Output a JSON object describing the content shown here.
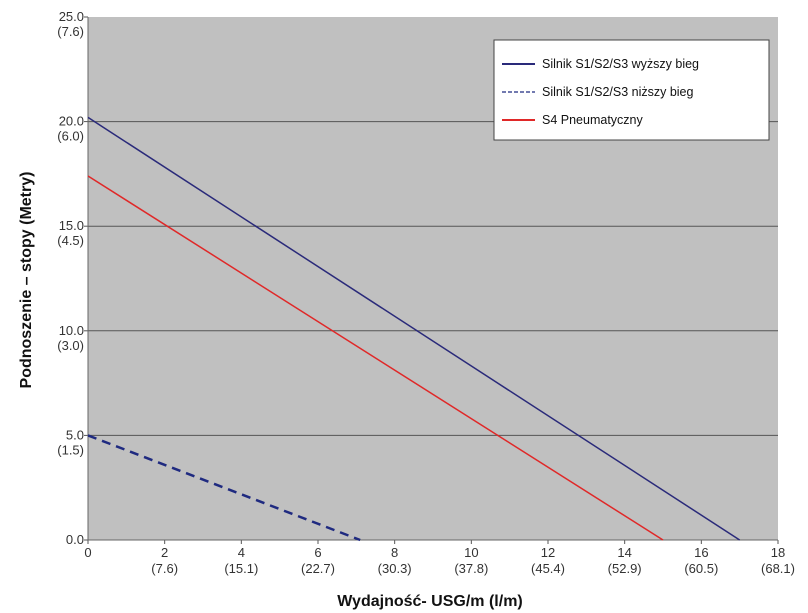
{
  "chart_data": {
    "type": "line",
    "title": "",
    "xlabel": "Wydajność- USG/m  (l/m)",
    "ylabel": "Podnoszenie – stopy (Metry)",
    "xlim": [
      0,
      18
    ],
    "ylim": [
      0,
      25
    ],
    "grid": "horizontal",
    "legend_placement": "top-right",
    "plot_background": "#c0c0c0",
    "x_ticks": [
      {
        "v": 0,
        "l": "0",
        "s": ""
      },
      {
        "v": 2,
        "l": "2",
        "s": "(7.6)"
      },
      {
        "v": 4,
        "l": "4",
        "s": "(15.1)"
      },
      {
        "v": 6,
        "l": "6",
        "s": "(22.7)"
      },
      {
        "v": 8,
        "l": "8",
        "s": "(30.3)"
      },
      {
        "v": 10,
        "l": "10",
        "s": "(37.8)"
      },
      {
        "v": 12,
        "l": "12",
        "s": "(45.4)"
      },
      {
        "v": 14,
        "l": "14",
        "s": "(52.9)"
      },
      {
        "v": 16,
        "l": "16",
        "s": "(60.5)"
      },
      {
        "v": 18,
        "l": "18",
        "s": "(68.1)"
      }
    ],
    "y_ticks": [
      {
        "v": 0,
        "l": "0.0",
        "s": ""
      },
      {
        "v": 5,
        "l": "5.0",
        "s": "(1.5)"
      },
      {
        "v": 10,
        "l": "10.0",
        "s": "(3.0)"
      },
      {
        "v": 15,
        "l": "15.0",
        "s": "(4.5)"
      },
      {
        "v": 20,
        "l": "20.0",
        "s": "(6.0)"
      },
      {
        "v": 25,
        "l": "25.0",
        "s": "(7.6)"
      }
    ],
    "series": [
      {
        "name": "Silnik S1/S2/S3 wyższy bieg",
        "color": "#2a2a7a",
        "dash": false,
        "x": [
          0,
          17
        ],
        "y": [
          20.2,
          0
        ]
      },
      {
        "name": "Silnik S1/S2/S3 niższy bieg",
        "color": "#1f2a80",
        "dash": true,
        "x": [
          0,
          7.1
        ],
        "y": [
          5,
          0
        ]
      },
      {
        "name": "S4 Pneumatyczny",
        "color": "#e02828",
        "dash": false,
        "x": [
          0,
          15
        ],
        "y": [
          17.4,
          0
        ]
      }
    ]
  }
}
